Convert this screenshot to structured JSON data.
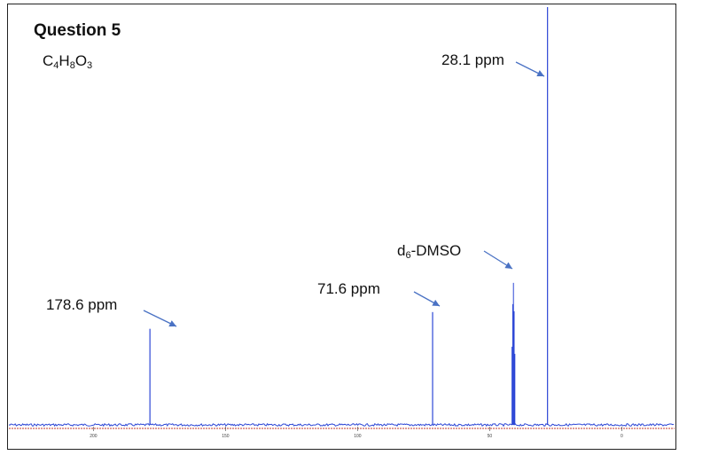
{
  "question": {
    "title": "Question 5",
    "formula_parts": [
      "C",
      "4",
      "H",
      "8",
      "O",
      "3"
    ]
  },
  "chart_data": {
    "type": "line",
    "title": "Question 5",
    "subtitle": "C4H8O3",
    "xlabel": "",
    "ylabel": "",
    "x_reversed": true,
    "xlim": [
      232,
      -20
    ],
    "x_ticks": [
      200,
      150,
      100,
      50,
      0
    ],
    "x_tick_labels": [
      "200",
      "150",
      "100",
      "50",
      "0"
    ],
    "peaks": [
      {
        "ppm": 178.6,
        "intensity": 0.23,
        "label": "178.6 ppm"
      },
      {
        "ppm": 71.6,
        "intensity": 0.27,
        "label": "71.6 ppm"
      },
      {
        "ppm": 41.0,
        "intensity": 0.34,
        "label": "d6-DMSO",
        "label_parts": [
          "d",
          "6",
          "-DMSO"
        ],
        "multiplet": true
      },
      {
        "ppm": 28.1,
        "intensity": 1.0,
        "label": "28.1 ppm"
      }
    ],
    "baseline_color": "#2d47d6",
    "axis_color": "#c0392b",
    "grid": false,
    "legend": "none"
  }
}
